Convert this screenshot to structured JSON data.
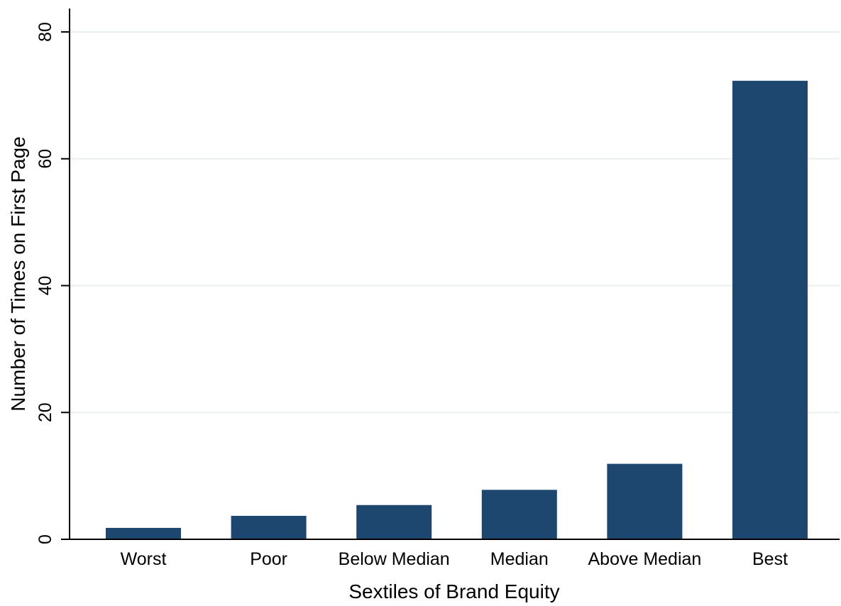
{
  "chart_data": {
    "type": "bar",
    "title": "",
    "xlabel": "Sextiles of Brand Equity",
    "ylabel": "Number of Times on First Page",
    "categories": [
      "Worst",
      "Poor",
      "Below Median",
      "Median",
      "Above Median",
      "Best"
    ],
    "values": [
      1.8,
      3.7,
      5.4,
      7.8,
      11.9,
      72.3
    ],
    "ylim": [
      0,
      80
    ],
    "yticks": [
      0,
      20,
      40,
      60,
      80
    ],
    "ytick_labels": [
      "0",
      "20",
      "40",
      "60",
      "80"
    ],
    "grid": true,
    "legend": "none",
    "colors": {
      "bar": "#1d476e",
      "grid": "#e8efef",
      "axis": "#000000",
      "background": "#ffffff"
    }
  }
}
